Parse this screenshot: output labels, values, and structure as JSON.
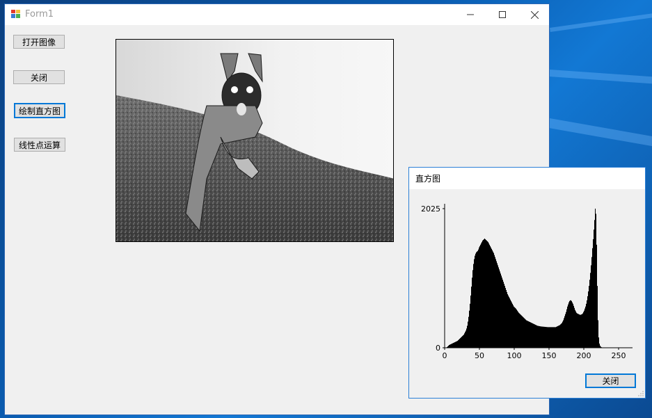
{
  "main_window": {
    "title": "Form1",
    "buttons": {
      "open_image": "打开图像",
      "close": "关闭",
      "draw_histogram": "绘制直方图",
      "linear_point_op": "线性点运算"
    }
  },
  "histogram_window": {
    "title": "直方图",
    "close_button": "关闭"
  },
  "chart_data": {
    "type": "bar",
    "title": "",
    "xlabel": "",
    "ylabel": "",
    "x_ticks": [
      0,
      50,
      100,
      150,
      200,
      250
    ],
    "y_ticks": [
      0,
      2025
    ],
    "xlim": [
      0,
      270
    ],
    "ylim": [
      0,
      2025
    ],
    "series": [
      {
        "values": [
          0,
          0,
          0,
          10,
          20,
          30,
          40,
          45,
          50,
          55,
          60,
          65,
          70,
          75,
          80,
          85,
          90,
          95,
          100,
          110,
          120,
          130,
          140,
          150,
          160,
          170,
          180,
          190,
          210,
          230,
          250,
          280,
          320,
          380,
          450,
          540,
          640,
          760,
          890,
          1020,
          1130,
          1220,
          1290,
          1340,
          1370,
          1390,
          1400,
          1410,
          1430,
          1460,
          1480,
          1500,
          1520,
          1540,
          1560,
          1570,
          1580,
          1590,
          1580,
          1570,
          1560,
          1550,
          1540,
          1520,
          1500,
          1480,
          1460,
          1440,
          1420,
          1400,
          1380,
          1350,
          1320,
          1290,
          1260,
          1230,
          1200,
          1170,
          1140,
          1110,
          1080,
          1050,
          1020,
          990,
          960,
          930,
          900,
          870,
          840,
          810,
          780,
          760,
          740,
          720,
          700,
          680,
          660,
          640,
          620,
          600,
          590,
          580,
          570,
          555,
          540,
          525,
          510,
          500,
          490,
          480,
          470,
          460,
          450,
          440,
          430,
          420,
          410,
          400,
          395,
          390,
          385,
          380,
          375,
          370,
          365,
          360,
          355,
          350,
          345,
          340,
          335,
          330,
          325,
          320,
          318,
          316,
          314,
          312,
          310,
          309,
          308,
          307,
          306,
          305,
          304,
          303,
          302,
          301,
          300,
          300,
          300,
          300,
          300,
          300,
          300,
          300,
          300,
          300,
          300,
          300,
          305,
          310,
          315,
          320,
          325,
          330,
          340,
          350,
          360,
          380,
          400,
          430,
          460,
          490,
          520,
          560,
          600,
          630,
          660,
          680,
          690,
          690,
          680,
          660,
          640,
          610,
          580,
          550,
          530,
          510,
          500,
          495,
          490,
          485,
          480,
          480,
          485,
          490,
          500,
          520,
          540,
          570,
          600,
          640,
          690,
          750,
          820,
          900,
          990,
          1090,
          1200,
          1320,
          1450,
          1580,
          1720,
          1860,
          2025,
          1950,
          1500,
          900,
          400,
          150,
          60,
          30,
          15,
          8,
          5,
          3,
          2,
          1,
          1,
          0,
          0,
          0,
          0,
          0,
          0,
          0,
          0,
          0,
          0,
          0,
          0,
          0,
          0,
          0,
          0,
          0,
          0,
          0,
          0,
          0,
          0,
          0,
          0,
          0,
          0
        ]
      }
    ],
    "bar_color": "#000000"
  }
}
